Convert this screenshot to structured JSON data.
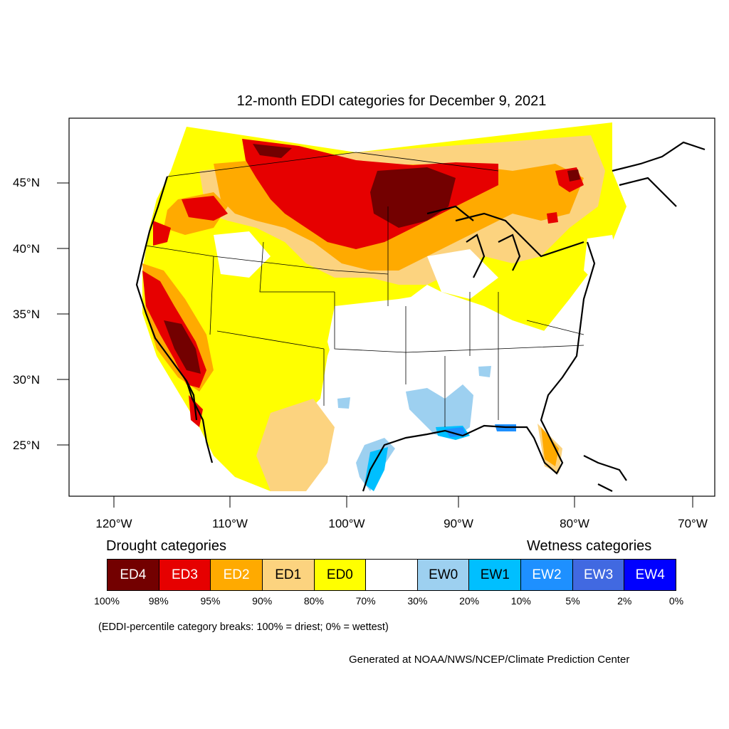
{
  "title": "12-month EDDI categories for December 9, 2021",
  "lat_labels": [
    "45°N",
    "40°N",
    "35°N",
    "30°N",
    "25°N"
  ],
  "lon_labels": [
    "120°W",
    "110°W",
    "100°W",
    "90°W",
    "80°W",
    "70°W"
  ],
  "legend": {
    "drought_heading": "Drought categories",
    "wetness_heading": "Wetness categories",
    "categories": [
      {
        "label": "ED4",
        "color": "#730000",
        "text_color": "#ffffff"
      },
      {
        "label": "ED3",
        "color": "#e60000",
        "text_color": "#ffffff"
      },
      {
        "label": "ED2",
        "color": "#ffaa00",
        "text_color": "#ffffff"
      },
      {
        "label": "ED1",
        "color": "#fcd37f",
        "text_color": "#000000"
      },
      {
        "label": "ED0",
        "color": "#ffff00",
        "text_color": "#000000"
      },
      {
        "label": "",
        "color": "#ffffff",
        "text_color": "#000000"
      },
      {
        "label": "EW0",
        "color": "#9dd0f0",
        "text_color": "#000000"
      },
      {
        "label": "EW1",
        "color": "#00bfff",
        "text_color": "#000000"
      },
      {
        "label": "EW2",
        "color": "#1e90ff",
        "text_color": "#ffffff"
      },
      {
        "label": "EW3",
        "color": "#4169e1",
        "text_color": "#ffffff"
      },
      {
        "label": "EW4",
        "color": "#0000ff",
        "text_color": "#ffffff"
      }
    ],
    "ticks": [
      "100%",
      "98%",
      "95%",
      "90%",
      "80%",
      "70%",
      "30%",
      "20%",
      "10%",
      "5%",
      "2%",
      "0%"
    ]
  },
  "note": "(EDDI-percentile category breaks: 100% = driest; 0% = wettest)",
  "credit": "Generated at NOAA/NWS/NCEP/Climate Prediction Center"
}
